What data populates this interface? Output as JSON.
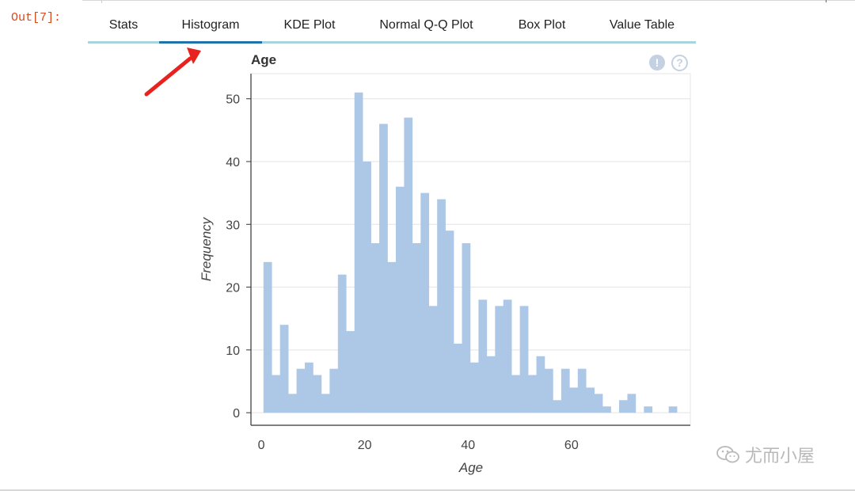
{
  "cell": {
    "out_prompt": "Out[7]:"
  },
  "tabs": [
    {
      "label": "Stats",
      "active": false
    },
    {
      "label": "Histogram",
      "active": true
    },
    {
      "label": "KDE Plot",
      "active": false
    },
    {
      "label": "Normal Q-Q Plot",
      "active": false
    },
    {
      "label": "Box Plot",
      "active": false
    },
    {
      "label": "Value Table",
      "active": false
    }
  ],
  "chart_controls": {
    "warning_symbol": "!",
    "help_symbol": "?"
  },
  "colors": {
    "bar": "#adc8e6",
    "prompt": "#d84a1b",
    "tab_active": "#1e73a8",
    "tab_border": "#a9d4dc",
    "arrow": "#e8231e"
  },
  "watermark": {
    "text": "尤而小屋"
  },
  "chart_data": {
    "type": "bar",
    "title": "Age",
    "xlabel": "Age",
    "ylabel": "Frequency",
    "xlim": [
      -2,
      83
    ],
    "ylim": [
      -2,
      54
    ],
    "bin_start": 0.42,
    "bin_width": 1.6,
    "values": [
      24,
      6,
      14,
      3,
      7,
      8,
      6,
      3,
      7,
      22,
      13,
      51,
      40,
      27,
      46,
      24,
      36,
      47,
      27,
      35,
      17,
      34,
      29,
      11,
      27,
      8,
      18,
      9,
      17,
      18,
      6,
      17,
      6,
      9,
      7,
      2,
      7,
      4,
      7,
      4,
      3,
      1,
      0,
      2,
      3,
      0,
      1,
      0,
      0,
      1
    ],
    "xticks": [
      0,
      20,
      40,
      60
    ],
    "yticks": [
      0,
      10,
      20,
      30,
      40,
      50
    ],
    "grid": true
  }
}
